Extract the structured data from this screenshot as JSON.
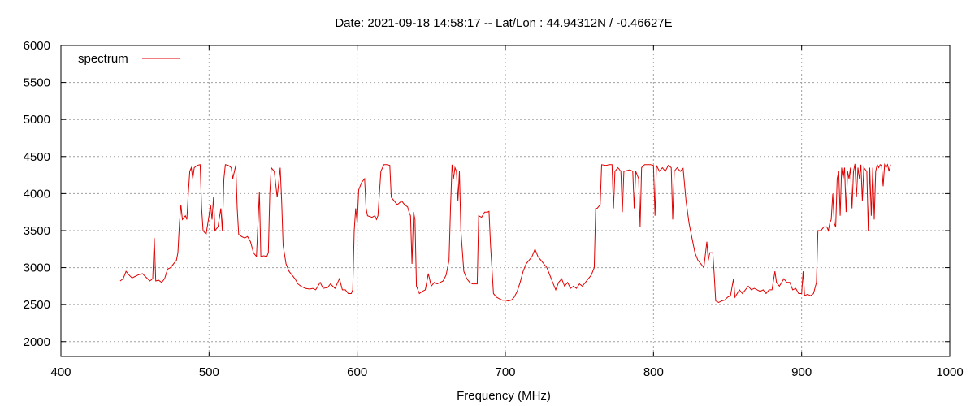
{
  "chart_data": {
    "type": "line",
    "title": "Date: 2021-09-18 14:58:17  --  Lat/Lon : 44.94312N / -0.46627E",
    "xlabel": "Frequency (MHz)",
    "ylabel": "",
    "xlim": [
      400,
      1000
    ],
    "ylim": [
      1800,
      6000
    ],
    "x_ticks": [
      "400",
      "500",
      "600",
      "700",
      "800",
      "900",
      "1000"
    ],
    "y_ticks": [
      "2000",
      "2500",
      "3000",
      "3500",
      "4000",
      "4500",
      "5000",
      "5500",
      "6000"
    ],
    "grid": true,
    "legend_position": "top-left",
    "series": [
      {
        "name": "spectrum",
        "color": "#e00000",
        "points": [
          [
            440,
            2820
          ],
          [
            442,
            2850
          ],
          [
            444,
            2950
          ],
          [
            446,
            2900
          ],
          [
            448,
            2860
          ],
          [
            450,
            2880
          ],
          [
            452,
            2900
          ],
          [
            455,
            2920
          ],
          [
            457,
            2880
          ],
          [
            460,
            2820
          ],
          [
            462,
            2850
          ],
          [
            463,
            3400
          ],
          [
            464,
            2820
          ],
          [
            466,
            2830
          ],
          [
            468,
            2800
          ],
          [
            470,
            2850
          ],
          [
            472,
            2980
          ],
          [
            474,
            3000
          ],
          [
            476,
            3050
          ],
          [
            478,
            3100
          ],
          [
            479,
            3200
          ],
          [
            480,
            3600
          ],
          [
            481,
            3850
          ],
          [
            482,
            3650
          ],
          [
            484,
            3700
          ],
          [
            485,
            3650
          ],
          [
            486,
            4000
          ],
          [
            487,
            4300
          ],
          [
            488,
            4350
          ],
          [
            489,
            4200
          ],
          [
            490,
            4350
          ],
          [
            492,
            4380
          ],
          [
            494,
            4390
          ],
          [
            495,
            3800
          ],
          [
            496,
            3500
          ],
          [
            498,
            3450
          ],
          [
            500,
            3700
          ],
          [
            501,
            3850
          ],
          [
            502,
            3650
          ],
          [
            503,
            3950
          ],
          [
            504,
            3500
          ],
          [
            506,
            3550
          ],
          [
            508,
            3800
          ],
          [
            509,
            3500
          ],
          [
            510,
            4200
          ],
          [
            511,
            4390
          ],
          [
            513,
            4380
          ],
          [
            515,
            4350
          ],
          [
            516,
            4200
          ],
          [
            518,
            4380
          ],
          [
            519,
            3800
          ],
          [
            520,
            3450
          ],
          [
            522,
            3420
          ],
          [
            524,
            3400
          ],
          [
            526,
            3420
          ],
          [
            528,
            3350
          ],
          [
            530,
            3200
          ],
          [
            532,
            3150
          ],
          [
            534,
            4020
          ],
          [
            535,
            3150
          ],
          [
            537,
            3160
          ],
          [
            539,
            3150
          ],
          [
            540,
            3200
          ],
          [
            541,
            4000
          ],
          [
            542,
            4350
          ],
          [
            544,
            4300
          ],
          [
            546,
            3950
          ],
          [
            548,
            4350
          ],
          [
            549,
            3900
          ],
          [
            550,
            3300
          ],
          [
            552,
            3050
          ],
          [
            554,
            2950
          ],
          [
            556,
            2900
          ],
          [
            558,
            2850
          ],
          [
            560,
            2780
          ],
          [
            562,
            2750
          ],
          [
            565,
            2720
          ],
          [
            568,
            2710
          ],
          [
            570,
            2720
          ],
          [
            572,
            2700
          ],
          [
            575,
            2800
          ],
          [
            577,
            2720
          ],
          [
            580,
            2730
          ],
          [
            582,
            2780
          ],
          [
            585,
            2720
          ],
          [
            588,
            2850
          ],
          [
            590,
            2700
          ],
          [
            592,
            2700
          ],
          [
            594,
            2650
          ],
          [
            596,
            2650
          ],
          [
            597,
            2700
          ],
          [
            598,
            3500
          ],
          [
            599,
            3800
          ],
          [
            600,
            3600
          ],
          [
            601,
            4050
          ],
          [
            603,
            4150
          ],
          [
            605,
            4200
          ],
          [
            606,
            3800
          ],
          [
            607,
            3700
          ],
          [
            610,
            3680
          ],
          [
            612,
            3700
          ],
          [
            613,
            3650
          ],
          [
            614,
            3700
          ],
          [
            616,
            4300
          ],
          [
            618,
            4390
          ],
          [
            620,
            4390
          ],
          [
            622,
            4380
          ],
          [
            623,
            3950
          ],
          [
            625,
            3900
          ],
          [
            627,
            3850
          ],
          [
            630,
            3900
          ],
          [
            632,
            3850
          ],
          [
            634,
            3820
          ],
          [
            635,
            3750
          ],
          [
            636,
            3700
          ],
          [
            637,
            3050
          ],
          [
            638,
            3750
          ],
          [
            639,
            3650
          ],
          [
            640,
            2750
          ],
          [
            642,
            2650
          ],
          [
            644,
            2680
          ],
          [
            646,
            2700
          ],
          [
            648,
            2920
          ],
          [
            650,
            2750
          ],
          [
            652,
            2800
          ],
          [
            654,
            2780
          ],
          [
            656,
            2800
          ],
          [
            658,
            2820
          ],
          [
            660,
            2900
          ],
          [
            662,
            3100
          ],
          [
            663,
            3800
          ],
          [
            664,
            4390
          ],
          [
            665,
            4200
          ],
          [
            666,
            4350
          ],
          [
            667,
            4300
          ],
          [
            668,
            3900
          ],
          [
            669,
            4300
          ],
          [
            670,
            3500
          ],
          [
            672,
            2950
          ],
          [
            674,
            2850
          ],
          [
            676,
            2800
          ],
          [
            678,
            2780
          ],
          [
            680,
            2780
          ],
          [
            681,
            2780
          ],
          [
            682,
            3700
          ],
          [
            684,
            3680
          ],
          [
            686,
            3750
          ],
          [
            688,
            3750
          ],
          [
            689,
            3760
          ],
          [
            690,
            3300
          ],
          [
            692,
            2650
          ],
          [
            694,
            2600
          ],
          [
            696,
            2580
          ],
          [
            698,
            2560
          ],
          [
            700,
            2560
          ],
          [
            702,
            2550
          ],
          [
            704,
            2560
          ],
          [
            706,
            2600
          ],
          [
            708,
            2680
          ],
          [
            710,
            2800
          ],
          [
            712,
            2950
          ],
          [
            714,
            3050
          ],
          [
            716,
            3100
          ],
          [
            718,
            3150
          ],
          [
            720,
            3250
          ],
          [
            722,
            3150
          ],
          [
            724,
            3100
          ],
          [
            726,
            3050
          ],
          [
            728,
            3000
          ],
          [
            730,
            2900
          ],
          [
            732,
            2800
          ],
          [
            734,
            2700
          ],
          [
            736,
            2800
          ],
          [
            738,
            2850
          ],
          [
            740,
            2750
          ],
          [
            742,
            2800
          ],
          [
            744,
            2720
          ],
          [
            746,
            2750
          ],
          [
            748,
            2720
          ],
          [
            750,
            2780
          ],
          [
            752,
            2750
          ],
          [
            754,
            2800
          ],
          [
            756,
            2850
          ],
          [
            758,
            2900
          ],
          [
            760,
            3000
          ],
          [
            761,
            3800
          ],
          [
            762,
            3800
          ],
          [
            764,
            3850
          ],
          [
            765,
            4390
          ],
          [
            768,
            4380
          ],
          [
            770,
            4390
          ],
          [
            772,
            4390
          ],
          [
            773,
            3800
          ],
          [
            774,
            4300
          ],
          [
            776,
            4350
          ],
          [
            778,
            4300
          ],
          [
            779,
            3750
          ],
          [
            780,
            4300
          ],
          [
            784,
            4320
          ],
          [
            786,
            4300
          ],
          [
            787,
            3800
          ],
          [
            788,
            4300
          ],
          [
            790,
            4200
          ],
          [
            791,
            3550
          ],
          [
            792,
            4350
          ],
          [
            794,
            4390
          ],
          [
            796,
            4390
          ],
          [
            798,
            4390
          ],
          [
            800,
            4380
          ],
          [
            801,
            3700
          ],
          [
            802,
            4380
          ],
          [
            804,
            4300
          ],
          [
            806,
            4350
          ],
          [
            808,
            4300
          ],
          [
            810,
            4380
          ],
          [
            812,
            4350
          ],
          [
            813,
            3650
          ],
          [
            814,
            4300
          ],
          [
            816,
            4350
          ],
          [
            818,
            4300
          ],
          [
            820,
            4340
          ],
          [
            822,
            3900
          ],
          [
            824,
            3600
          ],
          [
            826,
            3400
          ],
          [
            828,
            3200
          ],
          [
            830,
            3100
          ],
          [
            832,
            3050
          ],
          [
            834,
            3000
          ],
          [
            836,
            3350
          ],
          [
            837,
            3100
          ],
          [
            838,
            3200
          ],
          [
            840,
            3200
          ],
          [
            841,
            2900
          ],
          [
            842,
            2550
          ],
          [
            844,
            2530
          ],
          [
            846,
            2550
          ],
          [
            848,
            2560
          ],
          [
            850,
            2600
          ],
          [
            852,
            2620
          ],
          [
            854,
            2850
          ],
          [
            855,
            2600
          ],
          [
            858,
            2700
          ],
          [
            860,
            2650
          ],
          [
            862,
            2700
          ],
          [
            864,
            2750
          ],
          [
            866,
            2700
          ],
          [
            868,
            2720
          ],
          [
            870,
            2700
          ],
          [
            872,
            2680
          ],
          [
            874,
            2700
          ],
          [
            876,
            2650
          ],
          [
            878,
            2700
          ],
          [
            880,
            2700
          ],
          [
            882,
            2950
          ],
          [
            883,
            2800
          ],
          [
            885,
            2750
          ],
          [
            888,
            2850
          ],
          [
            890,
            2800
          ],
          [
            892,
            2800
          ],
          [
            894,
            2700
          ],
          [
            896,
            2720
          ],
          [
            898,
            2650
          ],
          [
            900,
            2650
          ],
          [
            901,
            2950
          ],
          [
            902,
            2620
          ],
          [
            904,
            2640
          ],
          [
            906,
            2620
          ],
          [
            908,
            2650
          ],
          [
            910,
            2800
          ],
          [
            911,
            3500
          ],
          [
            913,
            3500
          ],
          [
            915,
            3550
          ],
          [
            917,
            3550
          ],
          [
            918,
            3500
          ],
          [
            919,
            3600
          ],
          [
            920,
            3650
          ],
          [
            921,
            4000
          ],
          [
            922,
            3600
          ],
          [
            923,
            3550
          ],
          [
            924,
            4200
          ],
          [
            925,
            4300
          ],
          [
            926,
            3700
          ],
          [
            927,
            4350
          ],
          [
            928,
            4200
          ],
          [
            929,
            4350
          ],
          [
            930,
            3750
          ],
          [
            931,
            4300
          ],
          [
            932,
            4200
          ],
          [
            933,
            4350
          ],
          [
            934,
            3800
          ],
          [
            935,
            4300
          ],
          [
            936,
            4400
          ],
          [
            937,
            3950
          ],
          [
            938,
            4350
          ],
          [
            939,
            4200
          ],
          [
            940,
            4390
          ],
          [
            941,
            3900
          ],
          [
            942,
            4350
          ],
          [
            944,
            4300
          ],
          [
            945,
            3500
          ],
          [
            946,
            4350
          ],
          [
            947,
            3700
          ],
          [
            948,
            4350
          ],
          [
            949,
            3650
          ],
          [
            950,
            4300
          ],
          [
            951,
            4390
          ],
          [
            952,
            4350
          ],
          [
            953,
            4390
          ],
          [
            954,
            4380
          ],
          [
            955,
            4100
          ],
          [
            956,
            4390
          ],
          [
            957,
            4350
          ],
          [
            958,
            4390
          ],
          [
            959,
            4300
          ],
          [
            960,
            4390
          ]
        ]
      }
    ]
  }
}
